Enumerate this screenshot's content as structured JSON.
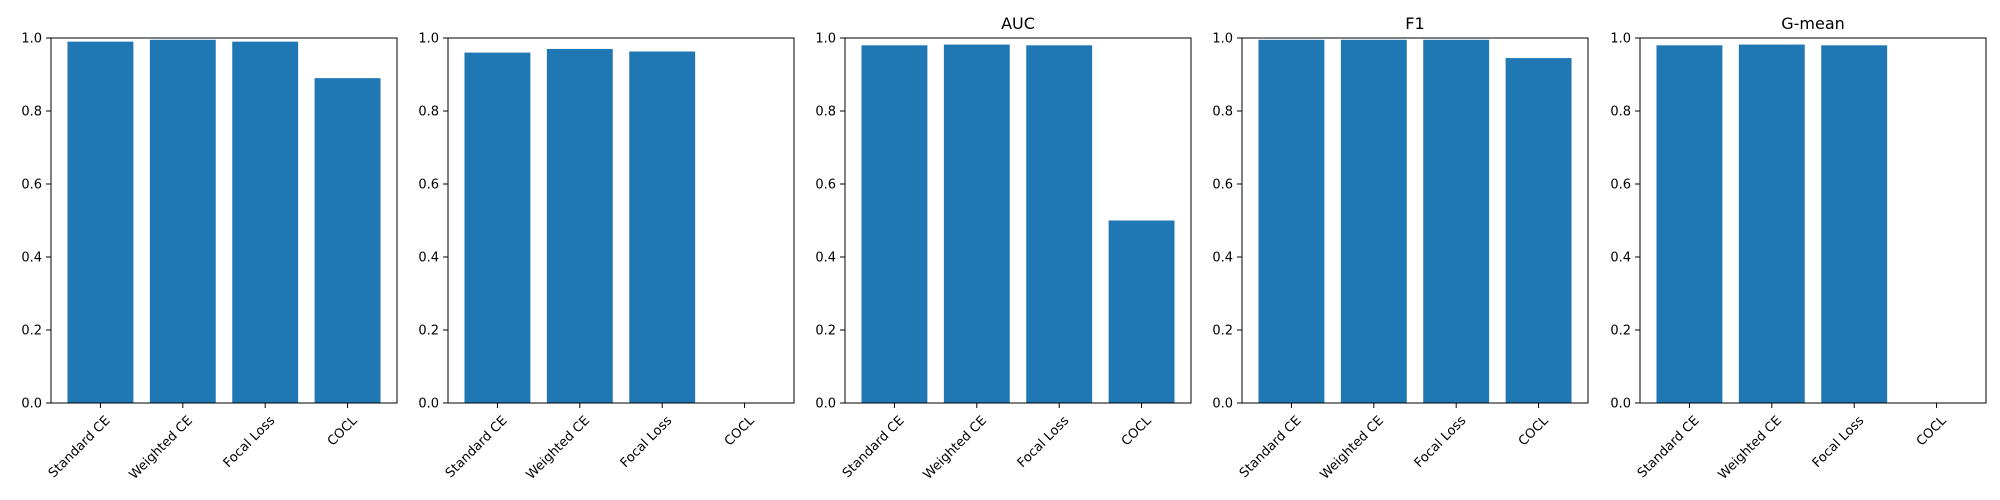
{
  "chart_data": [
    {
      "type": "bar",
      "title": "",
      "categories": [
        "Standard CE",
        "Weighted CE",
        "Focal Loss",
        "COCL"
      ],
      "values": [
        0.99,
        0.995,
        0.99,
        0.89
      ],
      "xlabel": "",
      "ylabel": "",
      "ylim": [
        0,
        1.0
      ],
      "yticks": [
        "0.0",
        "0.2",
        "0.4",
        "0.6",
        "0.8",
        "1.0"
      ],
      "bar_color": "#1f77b4",
      "grid": false
    },
    {
      "type": "bar",
      "title": "",
      "categories": [
        "Standard CE",
        "Weighted CE",
        "Focal Loss",
        "COCL"
      ],
      "values": [
        0.96,
        0.97,
        0.963,
        0
      ],
      "xlabel": "",
      "ylabel": "",
      "ylim": [
        0,
        1.0
      ],
      "yticks": [
        "0.0",
        "0.2",
        "0.4",
        "0.6",
        "0.8",
        "1.0"
      ],
      "bar_color": "#1f77b4",
      "grid": false
    },
    {
      "type": "bar",
      "title": "AUC",
      "categories": [
        "Standard CE",
        "Weighted CE",
        "Focal Loss",
        "COCL"
      ],
      "values": [
        0.98,
        0.982,
        0.98,
        0.5
      ],
      "xlabel": "",
      "ylabel": "",
      "ylim": [
        0,
        1.0
      ],
      "yticks": [
        "0.0",
        "0.2",
        "0.4",
        "0.6",
        "0.8",
        "1.0"
      ],
      "bar_color": "#1f77b4",
      "grid": false
    },
    {
      "type": "bar",
      "title": "F1",
      "categories": [
        "Standard CE",
        "Weighted CE",
        "Focal Loss",
        "COCL"
      ],
      "values": [
        0.995,
        0.995,
        0.995,
        0.945
      ],
      "xlabel": "",
      "ylabel": "",
      "ylim": [
        0,
        1.0
      ],
      "yticks": [
        "0.0",
        "0.2",
        "0.4",
        "0.6",
        "0.8",
        "1.0"
      ],
      "bar_color": "#1f77b4",
      "grid": false
    },
    {
      "type": "bar",
      "title": "G-mean",
      "categories": [
        "Standard CE",
        "Weighted CE",
        "Focal Loss",
        "COCL"
      ],
      "values": [
        0.98,
        0.982,
        0.98,
        0
      ],
      "xlabel": "",
      "ylabel": "",
      "ylim": [
        0,
        1.0
      ],
      "yticks": [
        "0.0",
        "0.2",
        "0.4",
        "0.6",
        "0.8",
        "1.0"
      ],
      "bar_color": "#1f77b4",
      "grid": false
    }
  ]
}
